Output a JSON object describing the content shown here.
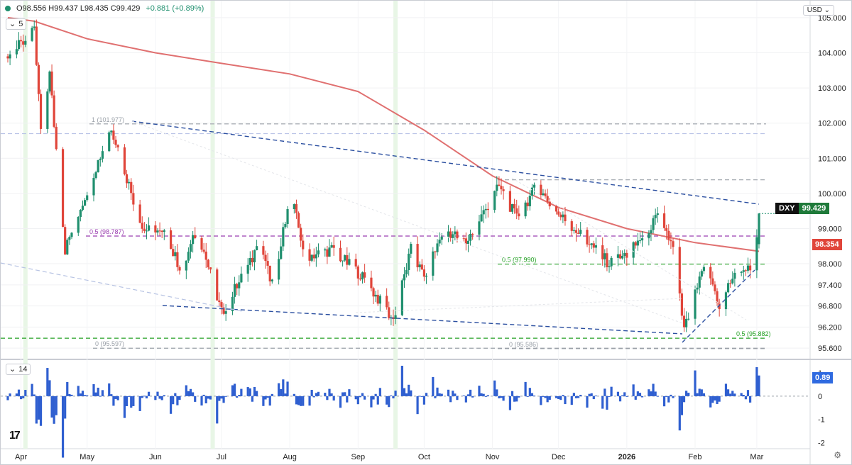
{
  "header": {
    "ohlc_text": "O98.556 H99.437 L98.435 C99.429",
    "change_text": "+0.881 (+0.89%)",
    "currency": "USD"
  },
  "main_pane": {
    "interval_label": "5"
  },
  "indicator_pane": {
    "label": "14"
  },
  "badges": {
    "symbol": "DXY",
    "last_price": "99.429",
    "ma_value": "98.354",
    "indicator_value": "0.89"
  },
  "colors": {
    "up": "#1f8f6e",
    "down": "#e0453a",
    "moving_average": "#e07070",
    "trendline": "#2b4fa0",
    "fib_purple": "#9b3fb0",
    "fib_green": "#23a023",
    "histogram": "#2f5fd0",
    "dxy_badge": "#1f7a3a",
    "ma_badge": "#e0453a",
    "indicator_badge": "#2f6ae0"
  },
  "chart_data": [
    {
      "type": "candlestick",
      "symbol": "DXY",
      "interval": "daily",
      "x_tick_labels": [
        "Apr",
        "May",
        "Jun",
        "Jul",
        "Aug",
        "Sep",
        "Oct",
        "Nov",
        "Dec",
        "2026",
        "Feb",
        "Mar"
      ],
      "y_tick_labels": [
        "95.600",
        "96.200",
        "96.800",
        "97.400",
        "98.000",
        "99.000",
        "100.000",
        "101.000",
        "102.000",
        "103.000",
        "104.000",
        "105.000"
      ],
      "ylim": [
        95.4,
        105.2
      ],
      "last": {
        "open": 98.556,
        "high": 99.437,
        "low": 98.435,
        "close": 99.429,
        "change": 0.881,
        "change_pct": 0.89
      },
      "price_path": [
        {
          "x": "Mar 26",
          "y": 103.9
        },
        {
          "x": "Apr 07",
          "y": 104.6
        },
        {
          "x": "Apr 10",
          "y": 101.8
        },
        {
          "x": "Apr 14",
          "y": 103.4
        },
        {
          "x": "Apr 21",
          "y": 98.4
        },
        {
          "x": "Apr 28",
          "y": 99.6
        },
        {
          "x": "May 12",
          "y": 101.9
        },
        {
          "x": "May 26",
          "y": 99.0
        },
        {
          "x": "Jun 05",
          "y": 98.8
        },
        {
          "x": "Jun 13",
          "y": 97.8
        },
        {
          "x": "Jun 20",
          "y": 99.0
        },
        {
          "x": "Jul 01",
          "y": 96.6
        },
        {
          "x": "Jul 18",
          "y": 98.5
        },
        {
          "x": "Jul 25",
          "y": 97.3
        },
        {
          "x": "Aug 01",
          "y": 100.1
        },
        {
          "x": "Aug 08",
          "y": 98.2
        },
        {
          "x": "Aug 20",
          "y": 98.4
        },
        {
          "x": "Sep 02",
          "y": 97.7
        },
        {
          "x": "Sep 17",
          "y": 96.4
        },
        {
          "x": "Sep 25",
          "y": 98.4
        },
        {
          "x": "Oct 01",
          "y": 97.6
        },
        {
          "x": "Oct 10",
          "y": 99.0
        },
        {
          "x": "Oct 20",
          "y": 98.6
        },
        {
          "x": "Nov 04",
          "y": 100.2
        },
        {
          "x": "Nov 12",
          "y": 99.3
        },
        {
          "x": "Nov 21",
          "y": 100.2
        },
        {
          "x": "Dec 01",
          "y": 99.4
        },
        {
          "x": "Dec 10",
          "y": 98.9
        },
        {
          "x": "Dec 24",
          "y": 98.0
        },
        {
          "x": "Jan 02",
          "y": 98.3
        },
        {
          "x": "Jan 16",
          "y": 99.4
        },
        {
          "x": "Jan 22",
          "y": 98.4
        },
        {
          "x": "Jan 27",
          "y": 96.1
        },
        {
          "x": "Feb 03",
          "y": 97.5
        },
        {
          "x": "Feb 06",
          "y": 98.0
        },
        {
          "x": "Feb 12",
          "y": 96.8
        },
        {
          "x": "Feb 20",
          "y": 97.9
        },
        {
          "x": "Feb 27",
          "y": 97.8
        },
        {
          "x": "Mar 02",
          "y": 99.429
        }
      ],
      "moving_average": [
        {
          "x": "Mar 26",
          "y": 105.0
        },
        {
          "x": "Apr 07",
          "y": 104.9
        },
        {
          "x": "May 01",
          "y": 104.4
        },
        {
          "x": "Jun 01",
          "y": 104.0
        },
        {
          "x": "Jul 01",
          "y": 103.7
        },
        {
          "x": "Aug 01",
          "y": 103.4
        },
        {
          "x": "Sep 01",
          "y": 102.9
        },
        {
          "x": "Oct 01",
          "y": 101.8
        },
        {
          "x": "Nov 01",
          "y": 100.5
        },
        {
          "x": "Dec 01",
          "y": 99.6
        },
        {
          "x": "Jan 01",
          "y": 99.0
        },
        {
          "x": "Feb 01",
          "y": 98.6
        },
        {
          "x": "Mar 02",
          "y": 98.354
        }
      ],
      "fibonacci_levels": [
        {
          "label": "1 (101.977)",
          "value": 101.977
        },
        {
          "label": "0.5 (98.787)",
          "value": 98.787
        },
        {
          "label": "0 (95.597)",
          "value": 95.597
        },
        {
          "label": "0.5 (97.990)",
          "value": 97.99
        },
        {
          "label": "0.5 (95.882)",
          "value": 95.882
        },
        {
          "label": "0 (95.586)",
          "value": 95.586
        }
      ],
      "horizontal_levels": [
        101.7,
        100.387
      ]
    },
    {
      "type": "bar",
      "indicator_period": "14",
      "y_tick_labels": [
        "1",
        "0",
        "-1",
        "-2"
      ],
      "ylim": [
        -2.2,
        1.4
      ],
      "last_value": 0.89
    }
  ]
}
